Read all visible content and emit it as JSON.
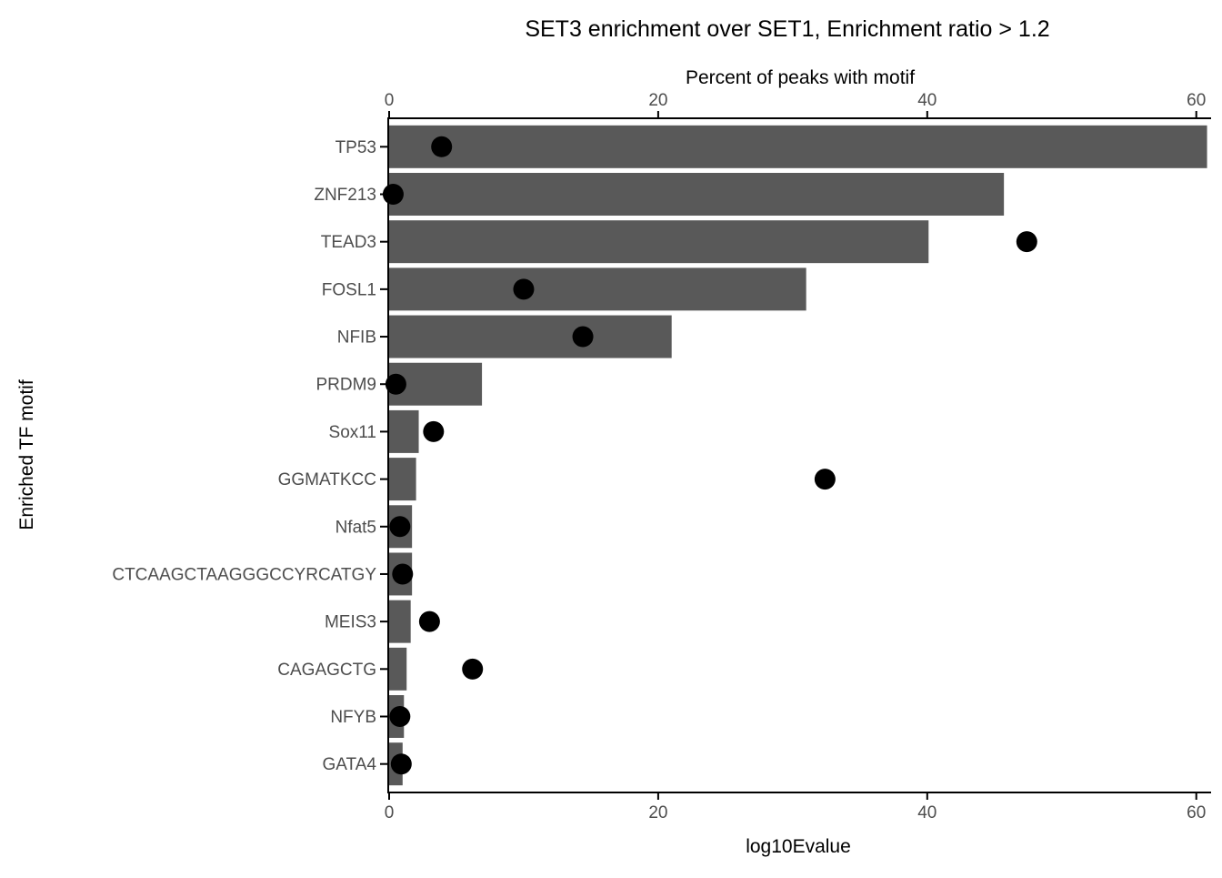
{
  "title": "SET3 enrichment over SET1, Enrichment ratio > 1.2",
  "colors": {
    "bar_fill": "#595959",
    "dot_fill": "#000000",
    "axis_line": "#000000",
    "tick_label": "#4d4d4d",
    "title_text": "#000000",
    "background": "#ffffff"
  },
  "chart_data": {
    "type": "bar",
    "orientation": "horizontal",
    "title": "SET3 enrichment over SET1, Enrichment ratio > 1.2",
    "top_xlabel": "Percent of peaks with motif",
    "bottom_xlabel": "log10Evalue",
    "ylabel": "Enriched TF motif",
    "categories": [
      "TP53",
      "ZNF213",
      "TEAD3",
      "FOSL1",
      "NFIB",
      "PRDM9",
      "Sox11",
      "GGMATKCC",
      "Nfat5",
      "CTCAAGCTAAGGGCCYRCATGY",
      "MEIS3",
      "CAGAGCTG",
      "NFYB",
      "GATA4"
    ],
    "series": [
      {
        "name": "Percent of peaks with motif",
        "mark": "bar",
        "axis": "top",
        "values": [
          60.8,
          45.7,
          40.1,
          31.0,
          21.0,
          6.9,
          2.2,
          2.0,
          1.7,
          1.7,
          1.6,
          1.3,
          1.1,
          1.0
        ]
      },
      {
        "name": "log10Evalue",
        "mark": "point",
        "axis": "bottom",
        "values": [
          3.9,
          0.3,
          47.4,
          10.0,
          14.4,
          0.5,
          3.3,
          32.4,
          0.8,
          1.0,
          3.0,
          6.2,
          0.8,
          0.9
        ]
      }
    ],
    "xticks": [
      0,
      20,
      40,
      60
    ],
    "xlim": [
      0,
      61.1
    ],
    "grid": false,
    "legend": false
  }
}
